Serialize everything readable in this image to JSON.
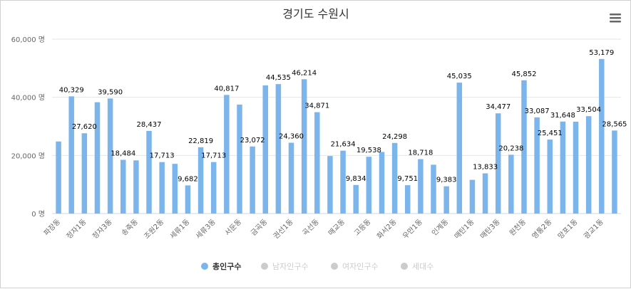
{
  "chart_data": {
    "type": "bar",
    "title": "경기도 수원시",
    "y_ticks": [
      "60,000 명",
      "40,000 명",
      "20,000 명",
      "0 명"
    ],
    "ylim": [
      0,
      60000
    ],
    "grid": true,
    "legend_position": "bottom",
    "categories": [
      "파장동",
      "",
      "정자1동",
      "",
      "정자3동",
      "",
      "송죽동",
      "",
      "조원2동",
      "",
      "세류1동",
      "",
      "세류3동",
      "",
      "서둔동",
      "",
      "금곡동",
      "",
      "권선1동",
      "",
      "곡선동",
      "",
      "매교동",
      "",
      "고등동",
      "",
      "화서2동",
      "",
      "우만1동",
      "",
      "인계동",
      "",
      "매탄1동",
      "",
      "매탄3동",
      "",
      "원천동",
      "",
      "영통2동",
      "",
      "망포1동",
      "",
      "광교1동",
      ""
    ],
    "series": [
      {
        "name": "총인구수",
        "color": "#7cb5ec",
        "visible": true,
        "values": [
          24800,
          40329,
          27620,
          38300,
          39590,
          18484,
          18300,
          28437,
          17713,
          17100,
          9682,
          22819,
          17713,
          40817,
          37500,
          23072,
          44100,
          44535,
          24360,
          46214,
          34871,
          19800,
          21634,
          9834,
          19538,
          21200,
          24298,
          9751,
          18718,
          16800,
          9383,
          45035,
          11600,
          13833,
          34477,
          20238,
          45852,
          33087,
          25451,
          31648,
          31600,
          33504,
          53179,
          28565
        ],
        "labels": [
          "",
          "40,329",
          "27,620",
          "",
          "39,590",
          "18,484",
          "",
          "28,437",
          "17,713",
          "",
          "9,682",
          "22,819",
          "17,713",
          "40,817",
          "",
          "23,072",
          "",
          "44,535",
          "24,360",
          "46,214",
          "34,871",
          "",
          "21,634",
          "9,834",
          "19,538",
          "",
          "24,298",
          "9,751",
          "18,718",
          "",
          "9,383",
          "45,035",
          "",
          "13,833",
          "34,477",
          "20,238",
          "45,852",
          "33,087",
          "25,451",
          "31,648",
          "",
          "33,504",
          "53,179",
          "28,565"
        ]
      },
      {
        "name": "남자인구수",
        "color": "#cccccc",
        "visible": false
      },
      {
        "name": "여자인구수",
        "color": "#cccccc",
        "visible": false
      },
      {
        "name": "세대수",
        "color": "#cccccc",
        "visible": false
      }
    ]
  },
  "menu_icon": "hamburger-menu-icon"
}
